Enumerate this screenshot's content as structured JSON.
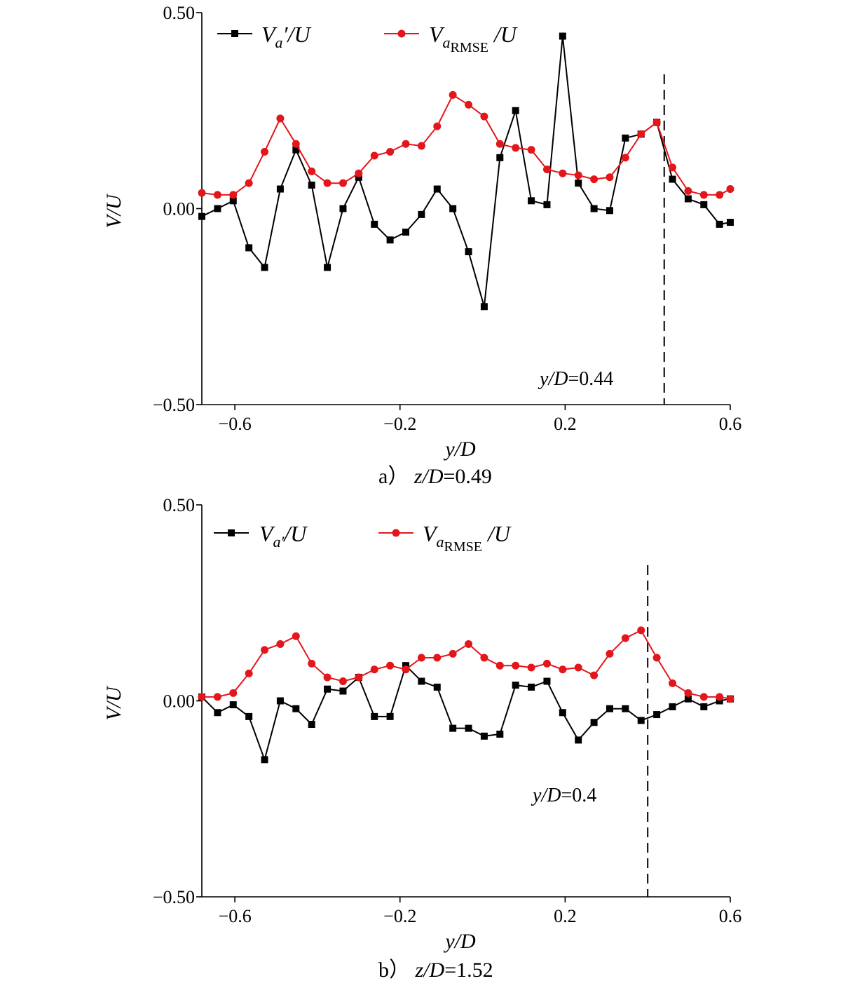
{
  "chart_data": [
    {
      "type": "line",
      "panel": "a",
      "caption": {
        "label": "a）",
        "italic": "z/D",
        "value": "=0.49"
      },
      "xlabel": "y/D",
      "ylabel": "V/U",
      "xlim": [
        -0.68,
        0.6
      ],
      "ylim": [
        -0.5,
        0.5
      ],
      "xticks": [
        -0.6,
        -0.2,
        0.2,
        0.6
      ],
      "xtick_labels": [
        "−0.6",
        "−0.2",
        "0.2",
        "0.6"
      ],
      "yticks": [
        -0.5,
        0.0,
        0.5
      ],
      "ytick_labels": [
        "−0.50",
        "0.00",
        "0.50"
      ],
      "vline": {
        "x": 0.44,
        "label_italic": "y/D",
        "label_value": "=0.44"
      },
      "x": [
        -0.68,
        -0.642,
        -0.604,
        -0.566,
        -0.528,
        -0.49,
        -0.452,
        -0.414,
        -0.376,
        -0.338,
        -0.3,
        -0.262,
        -0.224,
        -0.186,
        -0.148,
        -0.11,
        -0.072,
        -0.034,
        0.004,
        0.042,
        0.08,
        0.118,
        0.156,
        0.194,
        0.232,
        0.27,
        0.308,
        0.346,
        0.384,
        0.422,
        0.46,
        0.498,
        0.536,
        0.574,
        0.6
      ],
      "series": [
        {
          "name": "Va'/U",
          "legend_main": "V",
          "legend_sub": "a",
          "legend_tail": "′/U",
          "color": "#000000",
          "marker": "square",
          "values": [
            -0.02,
            0.0,
            0.02,
            -0.1,
            -0.15,
            0.05,
            0.15,
            0.06,
            -0.15,
            0.0,
            0.08,
            -0.04,
            -0.08,
            -0.06,
            -0.015,
            0.05,
            0.0,
            -0.11,
            -0.25,
            0.13,
            0.25,
            0.02,
            0.01,
            0.44,
            0.065,
            0.0,
            -0.005,
            0.18,
            0.19,
            0.22,
            0.075,
            0.025,
            0.01,
            -0.04,
            -0.035
          ]
        },
        {
          "name": "VaRMSE/U",
          "legend_main": "V",
          "legend_sub": "a",
          "legend_subsub": "RMSE",
          "legend_tail": "/U",
          "color": "#e3161b",
          "marker": "circle",
          "values": [
            0.04,
            0.035,
            0.035,
            0.065,
            0.145,
            0.23,
            0.165,
            0.095,
            0.065,
            0.065,
            0.09,
            0.135,
            0.145,
            0.165,
            0.16,
            0.21,
            0.29,
            0.265,
            0.235,
            0.165,
            0.155,
            0.15,
            0.1,
            0.09,
            0.085,
            0.075,
            0.08,
            0.13,
            0.19,
            0.22,
            0.105,
            0.045,
            0.035,
            0.035,
            0.05
          ]
        }
      ]
    },
    {
      "type": "line",
      "panel": "b",
      "caption": {
        "label": "b）",
        "italic": "z/D",
        "value": "=1.52"
      },
      "xlabel": "y/D",
      "ylabel": "V/U",
      "xlim": [
        -0.68,
        0.6
      ],
      "ylim": [
        -0.5,
        0.5
      ],
      "xticks": [
        -0.6,
        -0.2,
        0.2,
        0.6
      ],
      "xtick_labels": [
        "−0.6",
        "−0.2",
        "0.2",
        "0.6"
      ],
      "yticks": [
        -0.5,
        0.0,
        0.5
      ],
      "ytick_labels": [
        "−0.50",
        "0.00",
        "0.50"
      ],
      "vline": {
        "x": 0.4,
        "label_italic": "y/D",
        "label_value": "=0.4"
      },
      "x": [
        -0.68,
        -0.642,
        -0.604,
        -0.566,
        -0.528,
        -0.49,
        -0.452,
        -0.414,
        -0.376,
        -0.338,
        -0.3,
        -0.262,
        -0.224,
        -0.186,
        -0.148,
        -0.11,
        -0.072,
        -0.034,
        0.004,
        0.042,
        0.08,
        0.118,
        0.156,
        0.194,
        0.232,
        0.27,
        0.308,
        0.346,
        0.384,
        0.422,
        0.46,
        0.498,
        0.536,
        0.574,
        0.6
      ],
      "series": [
        {
          "name": "Va'/U",
          "legend_main": "V",
          "legend_sub": "a′",
          "legend_tail": "/U",
          "color": "#000000",
          "marker": "square",
          "values": [
            0.01,
            -0.03,
            -0.01,
            -0.04,
            -0.15,
            0.0,
            -0.02,
            -0.06,
            0.03,
            0.025,
            0.06,
            -0.04,
            -0.04,
            0.09,
            0.05,
            0.035,
            -0.07,
            -0.07,
            -0.09,
            -0.085,
            0.04,
            0.035,
            0.05,
            -0.03,
            -0.1,
            -0.055,
            -0.02,
            -0.02,
            -0.05,
            -0.035,
            -0.015,
            0.005,
            -0.015,
            0.0,
            0.005
          ]
        },
        {
          "name": "VaRMSE/U",
          "legend_main": "V",
          "legend_sub": "a",
          "legend_subsub": "RMSE",
          "legend_tail": "/U",
          "color": "#e3161b",
          "marker": "circle",
          "values": [
            0.01,
            0.01,
            0.02,
            0.07,
            0.13,
            0.145,
            0.165,
            0.095,
            0.06,
            0.05,
            0.06,
            0.08,
            0.09,
            0.08,
            0.11,
            0.11,
            0.12,
            0.145,
            0.11,
            0.09,
            0.09,
            0.085,
            0.095,
            0.08,
            0.085,
            0.065,
            0.12,
            0.16,
            0.18,
            0.11,
            0.045,
            0.02,
            0.01,
            0.01,
            0.005
          ]
        }
      ]
    }
  ]
}
